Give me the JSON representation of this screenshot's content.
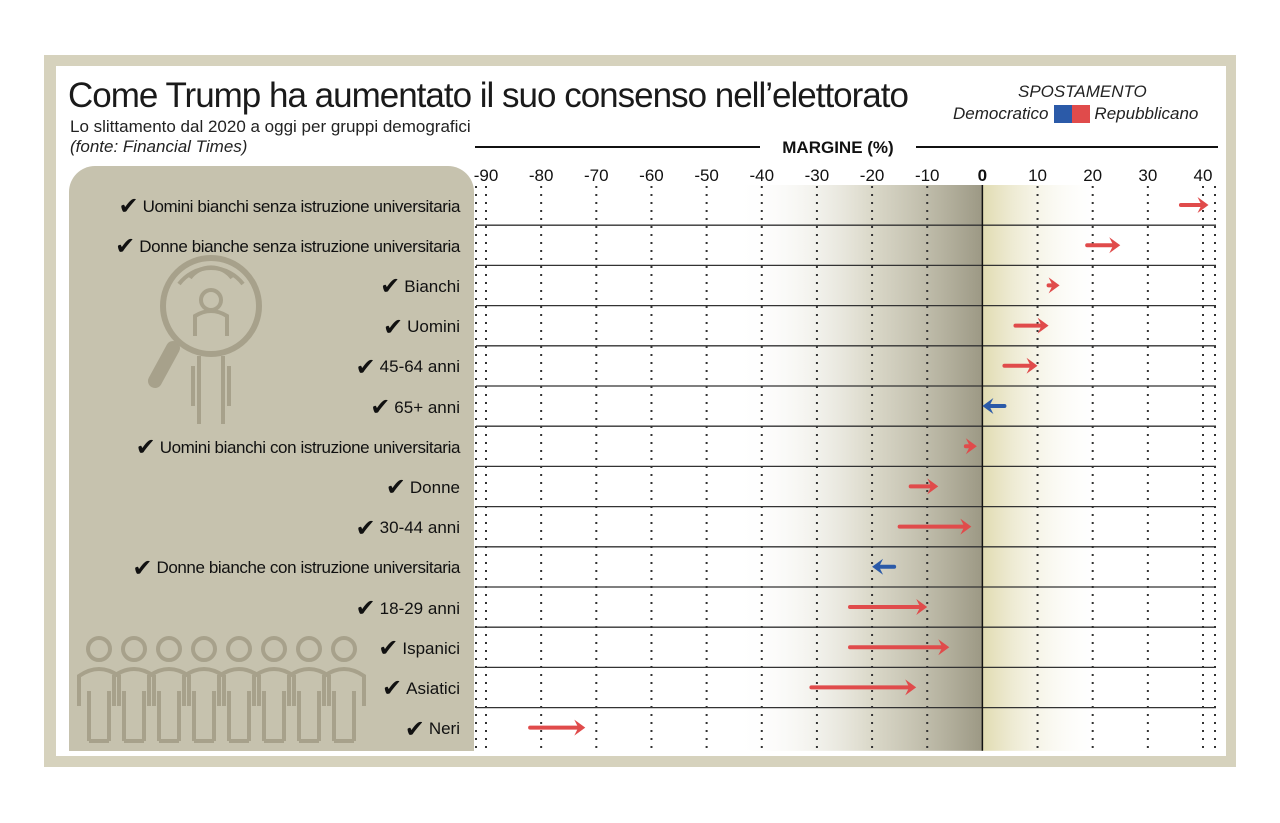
{
  "header": {
    "title": "Come Trump ha aumentato il suo consenso nell’elettorato",
    "subtitle": "Lo slittamento dal 2020 a oggi per gruppi demografici",
    "source": "(fonte: Financial Times)"
  },
  "legend": {
    "title": "SPOSTAMENTO",
    "democratic_label": "Democratico",
    "republican_label": "Repubblicano"
  },
  "colors": {
    "democratic": "#2b5aa8",
    "republican": "#e04b4b",
    "frame": "#d6d2bd",
    "panel": "#c6c2ae"
  },
  "icons": [
    "check-icon",
    "magnifier-person-icon",
    "crowd-icon"
  ],
  "chart_data": {
    "type": "arrow-range",
    "xlabel": "MARGINE (%)",
    "xlim": [
      -90,
      40
    ],
    "xticks": [
      -90,
      -80,
      -70,
      -60,
      -50,
      -40,
      -30,
      -20,
      -10,
      0,
      10,
      20,
      30,
      40
    ],
    "rows": [
      {
        "label": "Uomini bianchi senza istruzione universitaria",
        "from": 36,
        "to": 41,
        "direction": "republican"
      },
      {
        "label": "Donne bianche senza istruzione universitaria",
        "from": 19,
        "to": 25,
        "direction": "republican"
      },
      {
        "label": "Bianchi",
        "from": 12,
        "to": 14,
        "direction": "republican"
      },
      {
        "label": "Uomini",
        "from": 6,
        "to": 12,
        "direction": "republican"
      },
      {
        "label": "45-64 anni",
        "from": 4,
        "to": 10,
        "direction": "republican"
      },
      {
        "label": "65+ anni",
        "from": 4,
        "to": 0,
        "direction": "democratic"
      },
      {
        "label": "Uomini bianchi con istruzione universitaria",
        "from": -3,
        "to": -1,
        "direction": "republican"
      },
      {
        "label": "Donne",
        "from": -13,
        "to": -8,
        "direction": "republican"
      },
      {
        "label": "30-44 anni",
        "from": -15,
        "to": -2,
        "direction": "republican"
      },
      {
        "label": "Donne bianche con istruzione universitaria",
        "from": -16,
        "to": -20,
        "direction": "democratic"
      },
      {
        "label": "18-29 anni",
        "from": -24,
        "to": -10,
        "direction": "republican"
      },
      {
        "label": "Ispanici",
        "from": -24,
        "to": -6,
        "direction": "republican"
      },
      {
        "label": "Asiatici",
        "from": -31,
        "to": -12,
        "direction": "republican"
      },
      {
        "label": "Neri",
        "from": -82,
        "to": -72,
        "direction": "republican"
      }
    ]
  }
}
